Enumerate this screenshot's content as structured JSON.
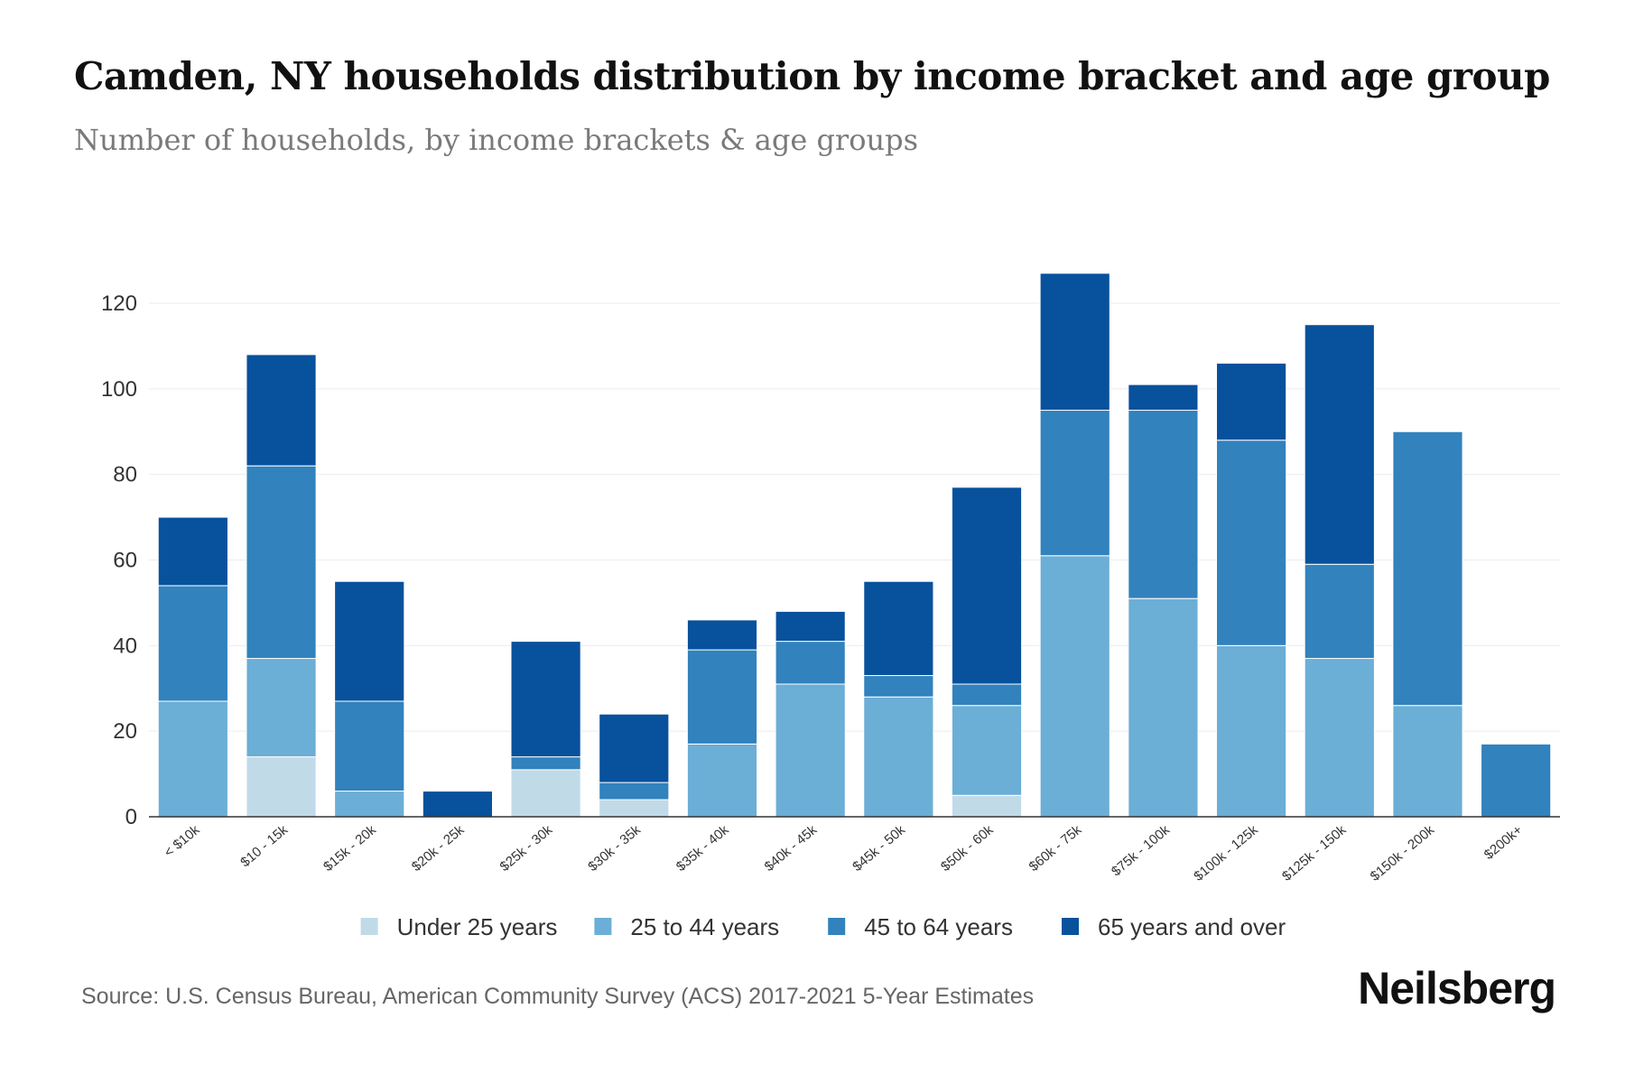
{
  "chart_data": {
    "type": "bar",
    "stacked": true,
    "title": "Camden, NY households distribution by income bracket and age group",
    "subtitle": "Number of households, by income brackets & age groups",
    "xlabel": "",
    "ylabel": "",
    "ylim": [
      0,
      120
    ],
    "yticks": [
      0,
      20,
      40,
      60,
      80,
      100,
      120
    ],
    "grid": true,
    "legend_position": "bottom",
    "categories": [
      "< $10k",
      "$10 - 15k",
      "$15k - 20k",
      "$20k - 25k",
      "$25k - 30k",
      "$30k - 35k",
      "$35k - 40k",
      "$40k - 45k",
      "$45k - 50k",
      "$50k - 60k",
      "$60k - 75k",
      "$75k - 100k",
      "$100k - 125k",
      "$125k - 150k",
      "$150k - 200k",
      "$200k+"
    ],
    "series": [
      {
        "name": "Under 25 years",
        "color": "#c0dae8",
        "values": [
          0,
          14,
          0,
          0,
          11,
          4,
          0,
          0,
          0,
          5,
          0,
          0,
          0,
          0,
          0,
          0
        ]
      },
      {
        "name": "25 to 44 years",
        "color": "#6baed6",
        "values": [
          27,
          23,
          6,
          0,
          0,
          0,
          17,
          31,
          28,
          21,
          61,
          51,
          40,
          37,
          26,
          0
        ]
      },
      {
        "name": "45 to 64 years",
        "color": "#3182bd",
        "values": [
          27,
          45,
          21,
          0,
          3,
          4,
          22,
          10,
          5,
          5,
          34,
          44,
          48,
          22,
          64,
          17
        ]
      },
      {
        "name": "65 years and over",
        "color": "#08519c",
        "values": [
          16,
          26,
          28,
          6,
          27,
          16,
          7,
          7,
          22,
          46,
          32,
          6,
          18,
          56,
          0,
          0
        ]
      }
    ]
  },
  "footer": {
    "source": "Source: U.S. Census Bureau, American Community Survey (ACS) 2017-2021 5-Year Estimates",
    "brand": "Neilsberg"
  }
}
